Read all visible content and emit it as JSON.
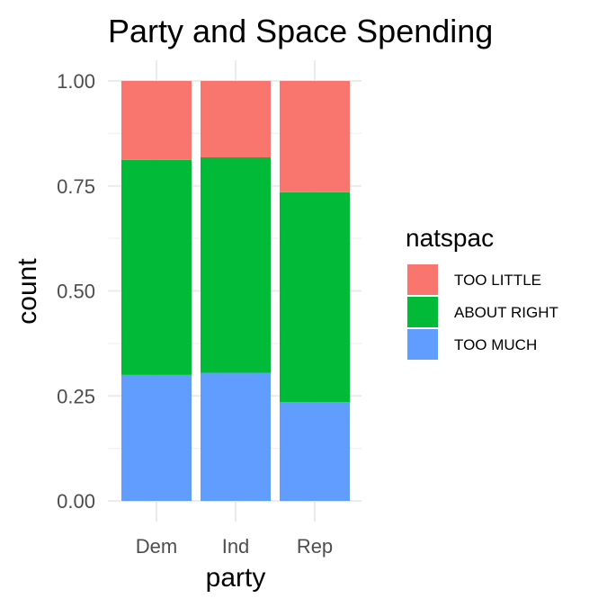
{
  "chart_data": {
    "type": "bar",
    "stacked": "fill",
    "title": "Party and Space Spending",
    "xlabel": "party",
    "ylabel": "count",
    "categories": [
      "Dem",
      "Ind",
      "Rep"
    ],
    "ylim": [
      0,
      1
    ],
    "yticks": [
      "0.00",
      "0.25",
      "0.50",
      "0.75",
      "1.00"
    ],
    "grid": true,
    "legend": {
      "title": "natspac",
      "placement": "right",
      "entries": [
        "TOO LITTLE",
        "ABOUT RIGHT",
        "TOO MUCH"
      ]
    },
    "series": [
      {
        "name": "TOO MUCH",
        "color": "#619CFF",
        "values": [
          0.3,
          0.305,
          0.235
        ]
      },
      {
        "name": "ABOUT RIGHT",
        "color": "#00BA38",
        "values": [
          0.512,
          0.513,
          0.5
        ]
      },
      {
        "name": "TOO LITTLE",
        "color": "#F8766D",
        "values": [
          0.188,
          0.182,
          0.265
        ]
      }
    ]
  }
}
